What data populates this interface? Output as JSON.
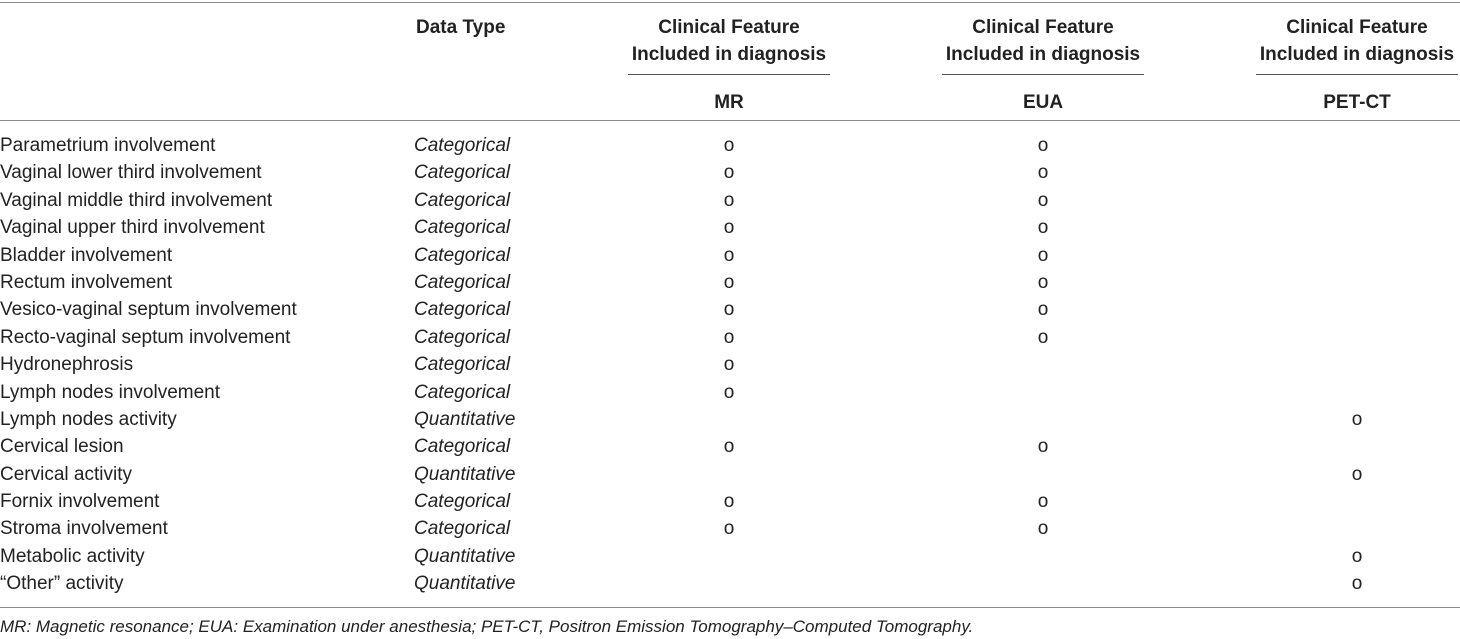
{
  "header": {
    "data_type": "Data Type",
    "columns": [
      {
        "group_line1": "Clinical Feature",
        "group_line2": "Included in diagnosis",
        "sub": "MR"
      },
      {
        "group_line1": "Clinical Feature",
        "group_line2": "Included in diagnosis",
        "sub": "EUA"
      },
      {
        "group_line1": "Clinical Feature",
        "group_line2": "Included in diagnosis",
        "sub": "PET-CT"
      }
    ]
  },
  "mark_symbol": "o",
  "rows": [
    {
      "feature": "Parametrium involvement",
      "type": "Categorical",
      "mr": "o",
      "eua": "o",
      "pet": ""
    },
    {
      "feature": "Vaginal lower third involvement",
      "type": "Categorical",
      "mr": "o",
      "eua": "o",
      "pet": ""
    },
    {
      "feature": "Vaginal middle third involvement",
      "type": "Categorical",
      "mr": "o",
      "eua": "o",
      "pet": ""
    },
    {
      "feature": "Vaginal upper third involvement",
      "type": "Categorical",
      "mr": "o",
      "eua": "o",
      "pet": ""
    },
    {
      "feature": "Bladder involvement",
      "type": "Categorical",
      "mr": "o",
      "eua": "o",
      "pet": ""
    },
    {
      "feature": "Rectum involvement",
      "type": "Categorical",
      "mr": "o",
      "eua": "o",
      "pet": ""
    },
    {
      "feature": "Vesico-vaginal septum involvement",
      "type": "Categorical",
      "mr": "o",
      "eua": "o",
      "pet": ""
    },
    {
      "feature": "Recto-vaginal septum involvement",
      "type": "Categorical",
      "mr": "o",
      "eua": "o",
      "pet": ""
    },
    {
      "feature": "Hydronephrosis",
      "type": "Categorical",
      "mr": "o",
      "eua": "",
      "pet": ""
    },
    {
      "feature": "Lymph nodes involvement",
      "type": "Categorical",
      "mr": "o",
      "eua": "",
      "pet": ""
    },
    {
      "feature": "Lymph nodes activity",
      "type": "Quantitative",
      "mr": "",
      "eua": "",
      "pet": "o"
    },
    {
      "feature": "Cervical lesion",
      "type": "Categorical",
      "mr": "o",
      "eua": "o",
      "pet": ""
    },
    {
      "feature": "Cervical activity",
      "type": "Quantitative",
      "mr": "",
      "eua": "",
      "pet": "o"
    },
    {
      "feature": "Fornix involvement",
      "type": "Categorical",
      "mr": "o",
      "eua": "o",
      "pet": ""
    },
    {
      "feature": "Stroma involvement",
      "type": "Categorical",
      "mr": "o",
      "eua": "o",
      "pet": ""
    },
    {
      "feature": "Metabolic activity",
      "type": "Quantitative",
      "mr": "",
      "eua": "",
      "pet": "o"
    },
    {
      "feature": "“Other” activity",
      "type": "Quantitative",
      "mr": "",
      "eua": "",
      "pet": "o"
    }
  ],
  "footnote": "MR: Magnetic resonance; EUA: Examination under anesthesia; PET-CT, Positron Emission Tomography–Computed Tomography."
}
